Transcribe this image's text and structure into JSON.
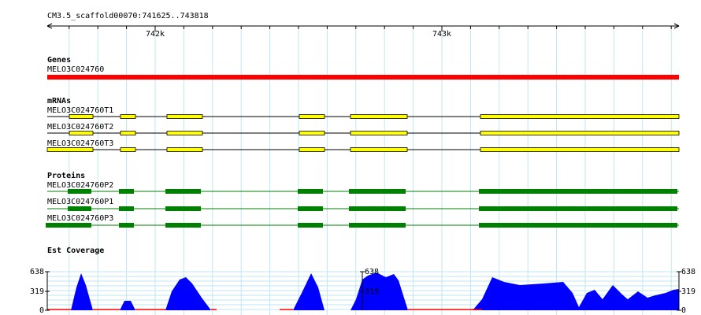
{
  "ruler": {
    "label": "CM3.5_scaffold00070:741625..743818",
    "ticks": [
      "742k",
      "743k"
    ]
  },
  "tracks": [
    {
      "title": "Genes",
      "features": [
        "MELO3C024760"
      ]
    },
    {
      "title": "mRNAs",
      "features": [
        "MELO3C024760T1",
        "MELO3C024760T2",
        "MELO3C024760T3"
      ]
    },
    {
      "title": "Proteins",
      "features": [
        "MELO3C024760P2",
        "MELO3C024760P1",
        "MELO3C024760P3"
      ]
    },
    {
      "title": "Est Coverage",
      "scale": [
        "638",
        "319",
        "0"
      ]
    }
  ]
}
